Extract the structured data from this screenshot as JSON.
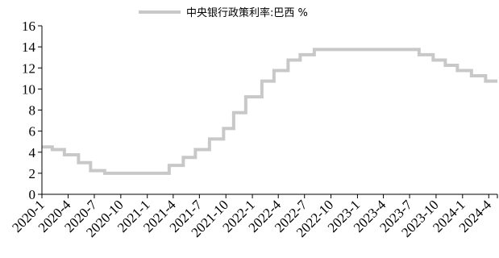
{
  "chart_data": {
    "type": "line",
    "title": "",
    "xlabel": "",
    "ylabel": "",
    "ylim": [
      0,
      16
    ],
    "yticks": [
      0,
      2,
      4,
      6,
      8,
      10,
      12,
      14,
      16
    ],
    "x_tick_labels": [
      "2020-1",
      "2020-4",
      "2020-7",
      "2020-10",
      "2021-1",
      "2021-4",
      "2021-7",
      "2021-10",
      "2022-1",
      "2022-4",
      "2022-7",
      "2022-10",
      "2023-1",
      "2023-4",
      "2023-7",
      "2023-10",
      "2024-1",
      "2024-4"
    ],
    "x_range": [
      "2020-01-01",
      "2024-05-01"
    ],
    "grid": false,
    "legend_position": "top-center",
    "line_shape": "step",
    "series": [
      {
        "name": "中央银行政策利率:巴西 %",
        "color": "#c8c8c8",
        "points": [
          {
            "x": "2020-01-01",
            "y": 4.5
          },
          {
            "x": "2020-02-06",
            "y": 4.25
          },
          {
            "x": "2020-03-19",
            "y": 3.75
          },
          {
            "x": "2020-05-07",
            "y": 3.0
          },
          {
            "x": "2020-06-18",
            "y": 2.25
          },
          {
            "x": "2020-08-06",
            "y": 2.0
          },
          {
            "x": "2021-03-18",
            "y": 2.75
          },
          {
            "x": "2021-05-06",
            "y": 3.5
          },
          {
            "x": "2021-06-17",
            "y": 4.25
          },
          {
            "x": "2021-08-05",
            "y": 5.25
          },
          {
            "x": "2021-09-23",
            "y": 6.25
          },
          {
            "x": "2021-10-28",
            "y": 7.75
          },
          {
            "x": "2021-12-09",
            "y": 9.25
          },
          {
            "x": "2022-02-03",
            "y": 10.75
          },
          {
            "x": "2022-03-17",
            "y": 11.75
          },
          {
            "x": "2022-05-05",
            "y": 12.75
          },
          {
            "x": "2022-06-16",
            "y": 13.25
          },
          {
            "x": "2022-08-04",
            "y": 13.75
          },
          {
            "x": "2023-08-03",
            "y": 13.25
          },
          {
            "x": "2023-09-21",
            "y": 12.75
          },
          {
            "x": "2023-11-02",
            "y": 12.25
          },
          {
            "x": "2023-12-14",
            "y": 11.75
          },
          {
            "x": "2024-02-01",
            "y": 11.25
          },
          {
            "x": "2024-03-21",
            "y": 10.75
          },
          {
            "x": "2024-05-01",
            "y": 10.75
          }
        ]
      }
    ]
  }
}
